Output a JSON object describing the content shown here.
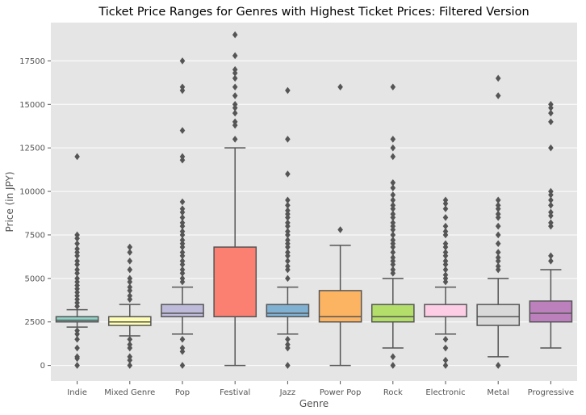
{
  "chart_data": {
    "type": "box",
    "title": "Ticket Price Ranges for Genres with Highest Ticket Prices: Filtered Version",
    "xlabel": "Genre",
    "ylabel": "Price (in JPY)",
    "ylim": [
      -900,
      19700
    ],
    "yticks": [
      0,
      2500,
      5000,
      7500,
      10000,
      12500,
      15000,
      17500
    ],
    "grid": true,
    "legend": "none",
    "categories": [
      "Indie",
      "Mixed Genre",
      "Pop",
      "Festival",
      "Jazz",
      "Power Pop",
      "Rock",
      "Electronic",
      "Metal",
      "Progressive"
    ],
    "boxes": [
      {
        "category": "Indie",
        "color": "#8dd3c7",
        "whislo": 2200,
        "q1": 2500,
        "med": 2600,
        "q3": 2800,
        "whishi": 3200,
        "fliers": [
          12000,
          7500,
          7300,
          7000,
          6700,
          6500,
          6300,
          6000,
          5800,
          5500,
          5300,
          5000,
          4800,
          4600,
          4400,
          4200,
          4000,
          3800,
          3600,
          3400,
          2000,
          1800,
          1500,
          1000,
          500,
          400,
          0
        ]
      },
      {
        "category": "Mixed Genre",
        "color": "#ffffb3",
        "whislo": 1700,
        "q1": 2300,
        "med": 2500,
        "q3": 2800,
        "whishi": 3500,
        "fliers": [
          6800,
          6500,
          6000,
          5500,
          5000,
          4800,
          4500,
          4300,
          4000,
          3800,
          1500,
          1200,
          1000,
          500,
          300,
          0
        ]
      },
      {
        "category": "Pop",
        "color": "#bebada",
        "whislo": 1800,
        "q1": 2800,
        "med": 3000,
        "q3": 3500,
        "whishi": 4500,
        "fliers": [
          17500,
          16000,
          15800,
          13500,
          12000,
          11800,
          9400,
          9000,
          8800,
          8500,
          8200,
          8000,
          7700,
          7500,
          7200,
          7000,
          6800,
          6500,
          6300,
          6000,
          5800,
          5500,
          5300,
          5000,
          4800,
          1500,
          1000,
          800,
          0
        ]
      },
      {
        "category": "Festival",
        "color": "#fb8072",
        "whislo": 0,
        "q1": 2800,
        "med": 2800,
        "q3": 6800,
        "whishi": 12500,
        "fliers": [
          19000,
          17800,
          17000,
          16800,
          16500,
          16000,
          15500,
          15000,
          14800,
          14500,
          14000,
          13800,
          13000
        ]
      },
      {
        "category": "Jazz",
        "color": "#80b1d3",
        "whislo": 1800,
        "q1": 2800,
        "med": 3000,
        "q3": 3500,
        "whishi": 4500,
        "fliers": [
          15800,
          13000,
          11000,
          9500,
          9200,
          8900,
          8700,
          8500,
          8200,
          8000,
          7700,
          7500,
          7200,
          7000,
          6800,
          6500,
          6300,
          6000,
          5700,
          5500,
          5000,
          1500,
          1200,
          1000,
          0
        ]
      },
      {
        "category": "Power Pop",
        "color": "#fdb462",
        "whislo": 0,
        "q1": 2500,
        "med": 2800,
        "q3": 4300,
        "whishi": 6900,
        "fliers": [
          16000,
          7800
        ]
      },
      {
        "category": "Rock",
        "color": "#b3de69",
        "whislo": 1000,
        "q1": 2500,
        "med": 2800,
        "q3": 3500,
        "whishi": 5000,
        "fliers": [
          16000,
          13000,
          12500,
          12000,
          10500,
          10200,
          9800,
          9500,
          9200,
          9000,
          8700,
          8500,
          8200,
          8000,
          7800,
          7500,
          7200,
          7000,
          6800,
          6500,
          6200,
          6000,
          5800,
          5500,
          5300,
          500,
          0
        ]
      },
      {
        "category": "Electronic",
        "color": "#fccde5",
        "whislo": 1800,
        "q1": 2800,
        "med": 2800,
        "q3": 3500,
        "whishi": 4500,
        "fliers": [
          9500,
          9300,
          9000,
          8500,
          8000,
          7700,
          7500,
          7000,
          6800,
          6500,
          6300,
          6000,
          5800,
          5500,
          5200,
          5000,
          4800,
          1500,
          1000,
          300,
          0
        ]
      },
      {
        "category": "Metal",
        "color": "#d9d9d9",
        "whislo": 500,
        "q1": 2300,
        "med": 2800,
        "q3": 3500,
        "whishi": 5000,
        "fliers": [
          16500,
          15500,
          9500,
          9200,
          9000,
          8700,
          8500,
          8000,
          7500,
          7000,
          6500,
          6200,
          6000,
          5700,
          5500,
          0
        ]
      },
      {
        "category": "Progressive",
        "color": "#bc80bd",
        "whislo": 1000,
        "q1": 2500,
        "med": 3000,
        "q3": 3700,
        "whishi": 5500,
        "fliers": [
          15000,
          14800,
          14500,
          14000,
          12500,
          10000,
          9800,
          9500,
          9200,
          8800,
          8600,
          8200,
          8000,
          6300,
          6000
        ]
      }
    ]
  }
}
